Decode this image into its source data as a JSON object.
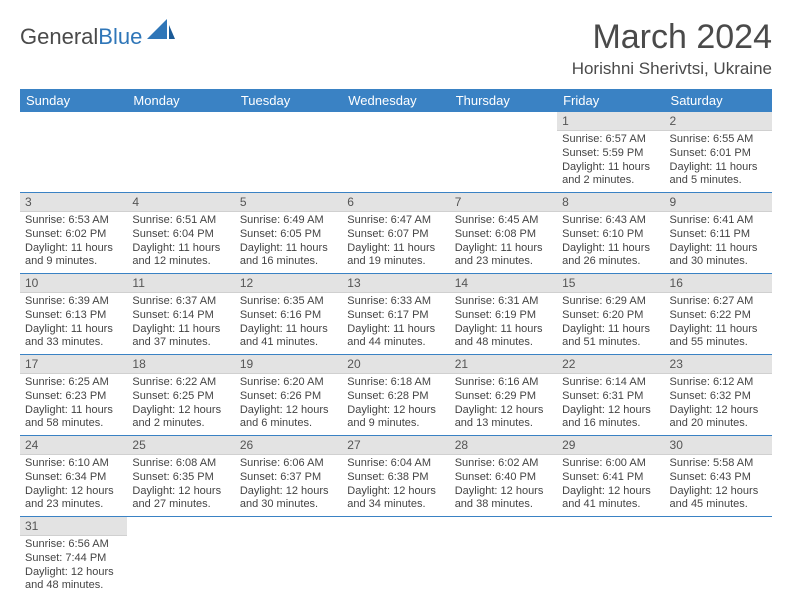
{
  "brand": {
    "name1": "General",
    "name2": "Blue"
  },
  "title": "March 2024",
  "location": "Horishni Sherivtsi, Ukraine",
  "colors": {
    "header_bg": "#3a82c4",
    "header_fg": "#ffffff",
    "daynum_bg": "#e3e3e3",
    "rule": "#3a82c4",
    "brand_blue": "#2f76b8",
    "text": "#4a4a4a"
  },
  "day_headers": [
    "Sunday",
    "Monday",
    "Tuesday",
    "Wednesday",
    "Thursday",
    "Friday",
    "Saturday"
  ],
  "weeks": [
    [
      null,
      null,
      null,
      null,
      null,
      {
        "n": "1",
        "sunrise": "Sunrise: 6:57 AM",
        "sunset": "Sunset: 5:59 PM",
        "daylight": "Daylight: 11 hours and 2 minutes."
      },
      {
        "n": "2",
        "sunrise": "Sunrise: 6:55 AM",
        "sunset": "Sunset: 6:01 PM",
        "daylight": "Daylight: 11 hours and 5 minutes."
      }
    ],
    [
      {
        "n": "3",
        "sunrise": "Sunrise: 6:53 AM",
        "sunset": "Sunset: 6:02 PM",
        "daylight": "Daylight: 11 hours and 9 minutes."
      },
      {
        "n": "4",
        "sunrise": "Sunrise: 6:51 AM",
        "sunset": "Sunset: 6:04 PM",
        "daylight": "Daylight: 11 hours and 12 minutes."
      },
      {
        "n": "5",
        "sunrise": "Sunrise: 6:49 AM",
        "sunset": "Sunset: 6:05 PM",
        "daylight": "Daylight: 11 hours and 16 minutes."
      },
      {
        "n": "6",
        "sunrise": "Sunrise: 6:47 AM",
        "sunset": "Sunset: 6:07 PM",
        "daylight": "Daylight: 11 hours and 19 minutes."
      },
      {
        "n": "7",
        "sunrise": "Sunrise: 6:45 AM",
        "sunset": "Sunset: 6:08 PM",
        "daylight": "Daylight: 11 hours and 23 minutes."
      },
      {
        "n": "8",
        "sunrise": "Sunrise: 6:43 AM",
        "sunset": "Sunset: 6:10 PM",
        "daylight": "Daylight: 11 hours and 26 minutes."
      },
      {
        "n": "9",
        "sunrise": "Sunrise: 6:41 AM",
        "sunset": "Sunset: 6:11 PM",
        "daylight": "Daylight: 11 hours and 30 minutes."
      }
    ],
    [
      {
        "n": "10",
        "sunrise": "Sunrise: 6:39 AM",
        "sunset": "Sunset: 6:13 PM",
        "daylight": "Daylight: 11 hours and 33 minutes."
      },
      {
        "n": "11",
        "sunrise": "Sunrise: 6:37 AM",
        "sunset": "Sunset: 6:14 PM",
        "daylight": "Daylight: 11 hours and 37 minutes."
      },
      {
        "n": "12",
        "sunrise": "Sunrise: 6:35 AM",
        "sunset": "Sunset: 6:16 PM",
        "daylight": "Daylight: 11 hours and 41 minutes."
      },
      {
        "n": "13",
        "sunrise": "Sunrise: 6:33 AM",
        "sunset": "Sunset: 6:17 PM",
        "daylight": "Daylight: 11 hours and 44 minutes."
      },
      {
        "n": "14",
        "sunrise": "Sunrise: 6:31 AM",
        "sunset": "Sunset: 6:19 PM",
        "daylight": "Daylight: 11 hours and 48 minutes."
      },
      {
        "n": "15",
        "sunrise": "Sunrise: 6:29 AM",
        "sunset": "Sunset: 6:20 PM",
        "daylight": "Daylight: 11 hours and 51 minutes."
      },
      {
        "n": "16",
        "sunrise": "Sunrise: 6:27 AM",
        "sunset": "Sunset: 6:22 PM",
        "daylight": "Daylight: 11 hours and 55 minutes."
      }
    ],
    [
      {
        "n": "17",
        "sunrise": "Sunrise: 6:25 AM",
        "sunset": "Sunset: 6:23 PM",
        "daylight": "Daylight: 11 hours and 58 minutes."
      },
      {
        "n": "18",
        "sunrise": "Sunrise: 6:22 AM",
        "sunset": "Sunset: 6:25 PM",
        "daylight": "Daylight: 12 hours and 2 minutes."
      },
      {
        "n": "19",
        "sunrise": "Sunrise: 6:20 AM",
        "sunset": "Sunset: 6:26 PM",
        "daylight": "Daylight: 12 hours and 6 minutes."
      },
      {
        "n": "20",
        "sunrise": "Sunrise: 6:18 AM",
        "sunset": "Sunset: 6:28 PM",
        "daylight": "Daylight: 12 hours and 9 minutes."
      },
      {
        "n": "21",
        "sunrise": "Sunrise: 6:16 AM",
        "sunset": "Sunset: 6:29 PM",
        "daylight": "Daylight: 12 hours and 13 minutes."
      },
      {
        "n": "22",
        "sunrise": "Sunrise: 6:14 AM",
        "sunset": "Sunset: 6:31 PM",
        "daylight": "Daylight: 12 hours and 16 minutes."
      },
      {
        "n": "23",
        "sunrise": "Sunrise: 6:12 AM",
        "sunset": "Sunset: 6:32 PM",
        "daylight": "Daylight: 12 hours and 20 minutes."
      }
    ],
    [
      {
        "n": "24",
        "sunrise": "Sunrise: 6:10 AM",
        "sunset": "Sunset: 6:34 PM",
        "daylight": "Daylight: 12 hours and 23 minutes."
      },
      {
        "n": "25",
        "sunrise": "Sunrise: 6:08 AM",
        "sunset": "Sunset: 6:35 PM",
        "daylight": "Daylight: 12 hours and 27 minutes."
      },
      {
        "n": "26",
        "sunrise": "Sunrise: 6:06 AM",
        "sunset": "Sunset: 6:37 PM",
        "daylight": "Daylight: 12 hours and 30 minutes."
      },
      {
        "n": "27",
        "sunrise": "Sunrise: 6:04 AM",
        "sunset": "Sunset: 6:38 PM",
        "daylight": "Daylight: 12 hours and 34 minutes."
      },
      {
        "n": "28",
        "sunrise": "Sunrise: 6:02 AM",
        "sunset": "Sunset: 6:40 PM",
        "daylight": "Daylight: 12 hours and 38 minutes."
      },
      {
        "n": "29",
        "sunrise": "Sunrise: 6:00 AM",
        "sunset": "Sunset: 6:41 PM",
        "daylight": "Daylight: 12 hours and 41 minutes."
      },
      {
        "n": "30",
        "sunrise": "Sunrise: 5:58 AM",
        "sunset": "Sunset: 6:43 PM",
        "daylight": "Daylight: 12 hours and 45 minutes."
      }
    ],
    [
      {
        "n": "31",
        "sunrise": "Sunrise: 6:56 AM",
        "sunset": "Sunset: 7:44 PM",
        "daylight": "Daylight: 12 hours and 48 minutes."
      },
      null,
      null,
      null,
      null,
      null,
      null
    ]
  ]
}
